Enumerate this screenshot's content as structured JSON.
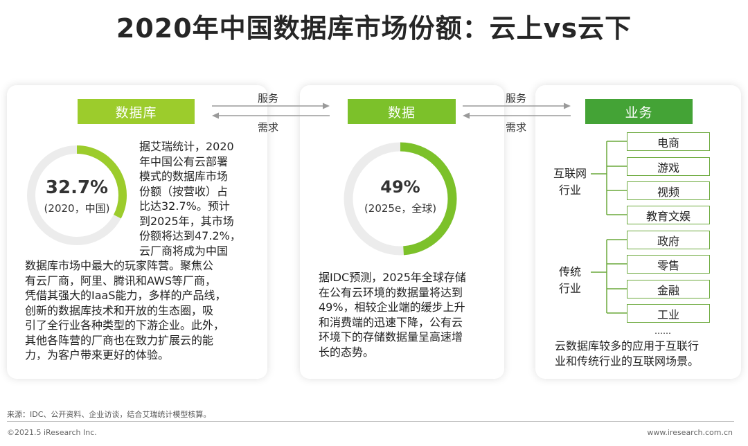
{
  "title": "2020年中国数据库市场份额：云上vs云下",
  "colors": {
    "light_green": "#9ccc2c",
    "mid_green": "#7cc12a",
    "dark_green": "#44a336",
    "ring_gray": "#ececec"
  },
  "flow": {
    "serve_label": "服务",
    "demand_label": "需求"
  },
  "db_card": {
    "header": "数据库",
    "donut": {
      "percent_label": "32.7%",
      "value": 0.327,
      "sub_label": "(2020，中国)"
    },
    "text_lines": [
      "据艾瑞统计，2020",
      "年中国公有云部署",
      "模式的数据库市场",
      "份额（按营收）占",
      "比达32.7%。预计",
      "到2025年，其市场",
      "份额将达到47.2%，",
      "云厂商将成为中国"
    ],
    "text_lines_full": [
      "数据库市场中最大的玩家阵营。聚焦公",
      "有云厂商，阿里、腾讯和AWS等厂商，",
      "凭借其强大的IaaS能力，多样的产品线，",
      "创新的数据库技术和开放的生态圈，吸",
      "引了全行业各种类型的下游企业。此外，",
      "其他各阵营的厂商也在致力扩展云的能",
      "力，为客户带来更好的体验。"
    ]
  },
  "data_card": {
    "header": "数据",
    "donut": {
      "percent_label": "49%",
      "value": 0.49,
      "sub_label": "(2025e，全球)"
    },
    "text_lines": [
      "据IDC预测，2025年全球存储",
      "在公有云环境的数据量将达到",
      "49%，相较企业端的缓步上升",
      "和消费端的迅速下降，公有云",
      "环境下的存储数据量呈高速增",
      "长的态势。"
    ]
  },
  "biz_card": {
    "header": "业务",
    "groups": [
      {
        "label_lines": [
          "互联网",
          "行业"
        ],
        "items": [
          "电商",
          "游戏",
          "视频",
          "教育文娱"
        ]
      },
      {
        "label_lines": [
          "传统",
          "行业"
        ],
        "items": [
          "政府",
          "零售",
          "金融",
          "工业"
        ]
      }
    ],
    "ellipsis": "……",
    "text_lines": [
      "云数据库较多的应用于互联行",
      "业和传统行业的互联网场景。"
    ]
  },
  "footer": {
    "source": "来源：IDC、公开资料、企业访谈，结合艾瑞统计模型核算。",
    "copyright": "©2021.5 iResearch Inc.",
    "website": "www.iresearch.com.cn"
  }
}
